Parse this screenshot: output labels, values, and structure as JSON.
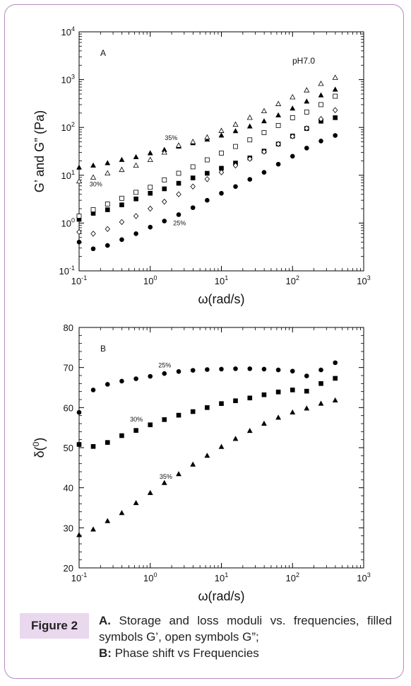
{
  "figure": {
    "tag": "Figure 2",
    "caption_a_label": "A.",
    "caption_a_text": "Storage and loss moduli vs. frequencies, filled symbols G’, open symbols G”;",
    "caption_b_label": "B:",
    "caption_b_text": "Phase shift vs Frequencies"
  },
  "chart_data": [
    {
      "type": "scatter",
      "panel_label": "A",
      "annotation": "pH7.0",
      "xlabel": "ω(rad/s)",
      "ylabel": "G’ and G” (Pa)",
      "xscale": "log",
      "yscale": "log",
      "xlim": [
        0.1,
        1000
      ],
      "ylim": [
        0.1,
        10000
      ],
      "grid": false,
      "x_ticks": [
        {
          "base": "10",
          "exp": "-1"
        },
        {
          "base": "10",
          "exp": "0"
        },
        {
          "base": "10",
          "exp": "1"
        },
        {
          "base": "10",
          "exp": "2"
        },
        {
          "base": "10",
          "exp": "3"
        }
      ],
      "y_ticks": [
        {
          "base": "10",
          "exp": "-1"
        },
        {
          "base": "10",
          "exp": "0"
        },
        {
          "base": "10",
          "exp": "1"
        },
        {
          "base": "10",
          "exp": "2"
        },
        {
          "base": "10",
          "exp": "3"
        },
        {
          "base": "10",
          "exp": "4"
        }
      ],
      "labels": [
        {
          "text": "35%",
          "x": 1.6,
          "y": 55
        },
        {
          "text": "30%",
          "x": 0.14,
          "y": 5.9
        },
        {
          "text": "25%",
          "x": 2.1,
          "y": 0.9
        }
      ],
      "series": [
        {
          "group": "35%",
          "modulus": "G'",
          "marker": "triangle",
          "filled": true,
          "x": [
            0.1,
            0.158,
            0.251,
            0.398,
            0.631,
            1,
            1.58,
            2.51,
            3.98,
            6.31,
            10,
            15.8,
            25.1,
            39.8,
            63.1,
            100,
            158,
            251,
            398
          ],
          "y": [
            14.5,
            16,
            18,
            21,
            24,
            29,
            34,
            40,
            47,
            56,
            68,
            84,
            105,
            135,
            180,
            250,
            350,
            470,
            620
          ]
        },
        {
          "group": "35%",
          "modulus": "G\"",
          "marker": "triangle",
          "filled": false,
          "x": [
            0.1,
            0.158,
            0.251,
            0.398,
            0.631,
            1,
            1.58,
            2.51,
            3.98,
            6.31,
            10,
            15.8,
            25.1,
            39.8,
            63.1,
            100,
            158,
            251,
            398
          ],
          "y": [
            7.5,
            9,
            11,
            13,
            16,
            21,
            30,
            42,
            50,
            62,
            85,
            115,
            160,
            220,
            310,
            430,
            600,
            820,
            1100
          ]
        },
        {
          "group": "30%",
          "modulus": "G'",
          "marker": "square",
          "filled": true,
          "x": [
            0.1,
            0.158,
            0.251,
            0.398,
            0.631,
            1,
            1.58,
            2.51,
            3.98,
            6.31,
            10,
            15.8,
            25.1,
            39.8,
            63.1,
            100,
            158,
            251,
            398
          ],
          "y": [
            1.2,
            1.6,
            1.9,
            2.4,
            3.2,
            4.2,
            5.2,
            6.8,
            8.8,
            11,
            14,
            18,
            23,
            32,
            45,
            66,
            95,
            135,
            160
          ]
        },
        {
          "group": "30%",
          "modulus": "G\"",
          "marker": "square",
          "filled": false,
          "x": [
            0.1,
            0.158,
            0.251,
            0.398,
            0.631,
            1,
            1.58,
            2.51,
            3.98,
            6.31,
            10,
            15.8,
            25.1,
            39.8,
            63.1,
            100,
            158,
            251,
            398
          ],
          "y": [
            1.4,
            1.9,
            2.5,
            3.3,
            4.4,
            5.6,
            8,
            11,
            15,
            21,
            29,
            40,
            55,
            78,
            110,
            160,
            210,
            300,
            450
          ]
        },
        {
          "group": "25%",
          "modulus": "G'",
          "marker": "circle",
          "filled": true,
          "x": [
            0.1,
            0.158,
            0.251,
            0.398,
            0.631,
            1,
            1.58,
            2.51,
            3.98,
            6.31,
            10,
            15.8,
            25.1,
            39.8,
            63.1,
            100,
            158,
            251,
            398
          ],
          "y": [
            0.4,
            0.29,
            0.34,
            0.45,
            0.6,
            0.82,
            1.1,
            1.5,
            2.1,
            3,
            4.2,
            5.8,
            8.2,
            11.5,
            17,
            25,
            37,
            52,
            68
          ]
        },
        {
          "group": "25%",
          "modulus": "G\"",
          "marker": "diamond",
          "filled": false,
          "x": [
            0.1,
            0.158,
            0.251,
            0.398,
            0.631,
            1,
            1.58,
            2.51,
            3.98,
            6.31,
            10,
            15.8,
            25.1,
            39.8,
            63.1,
            100,
            158,
            251,
            398
          ],
          "y": [
            0.65,
            0.6,
            0.75,
            1.05,
            1.4,
            2,
            2.8,
            4,
            5.8,
            8.3,
            11.5,
            16,
            22,
            31,
            45,
            65,
            96,
            150,
            230
          ]
        }
      ]
    },
    {
      "type": "scatter",
      "panel_label": "B",
      "xlabel": "ω(rad/s)",
      "ylabel": "δ(",
      "ylabel_sup": "0",
      "ylabel_close": ")",
      "xscale": "log",
      "yscale": "linear",
      "xlim": [
        0.1,
        1000
      ],
      "ylim": [
        20,
        80
      ],
      "grid": false,
      "x_ticks": [
        {
          "base": "10",
          "exp": "-1"
        },
        {
          "base": "10",
          "exp": "0"
        },
        {
          "base": "10",
          "exp": "1"
        },
        {
          "base": "10",
          "exp": "2"
        },
        {
          "base": "10",
          "exp": "3"
        }
      ],
      "y_ticks": [
        "20",
        "30",
        "40",
        "50",
        "60",
        "70",
        "80"
      ],
      "labels": [
        {
          "text": "25%",
          "x": 1.3,
          "y": 70
        },
        {
          "text": "30%",
          "x": 0.52,
          "y": 56.5
        },
        {
          "text": "35%",
          "x": 1.35,
          "y": 42.2
        }
      ],
      "series": [
        {
          "name": "25%",
          "marker": "circle",
          "x": [
            0.1,
            0.158,
            0.251,
            0.398,
            0.631,
            1,
            1.58,
            2.51,
            3.98,
            6.31,
            10,
            15.8,
            25.1,
            39.8,
            63.1,
            100,
            158,
            251,
            398
          ],
          "y": [
            58.8,
            64.4,
            65.8,
            66.6,
            67.2,
            67.8,
            68.5,
            69,
            69.3,
            69.5,
            69.6,
            69.7,
            69.7,
            69.6,
            69.4,
            69.1,
            67.9,
            69.4,
            71.2
          ]
        },
        {
          "name": "30%",
          "marker": "square",
          "x": [
            0.1,
            0.158,
            0.251,
            0.398,
            0.631,
            1,
            1.58,
            2.51,
            3.98,
            6.31,
            10,
            15.8,
            25.1,
            39.8,
            63.1,
            100,
            158,
            251,
            398
          ],
          "y": [
            50.8,
            50.3,
            51.3,
            53,
            54.3,
            55.7,
            57,
            58.1,
            59,
            60,
            61,
            61.7,
            62.4,
            63.2,
            63.9,
            64.4,
            64.1,
            66,
            67.3
          ]
        },
        {
          "name": "35%",
          "marker": "triangle",
          "x": [
            0.1,
            0.158,
            0.251,
            0.398,
            0.631,
            1,
            1.58,
            2.51,
            3.98,
            6.31,
            10,
            15.8,
            25.1,
            39.8,
            63.1,
            100,
            158,
            251,
            398
          ],
          "y": [
            28.2,
            29.6,
            31.7,
            33.7,
            36.2,
            38.7,
            41.2,
            43.4,
            45.8,
            48,
            50.2,
            52.2,
            54.2,
            56,
            57.5,
            58.8,
            59.8,
            61,
            61.8
          ]
        }
      ]
    }
  ]
}
